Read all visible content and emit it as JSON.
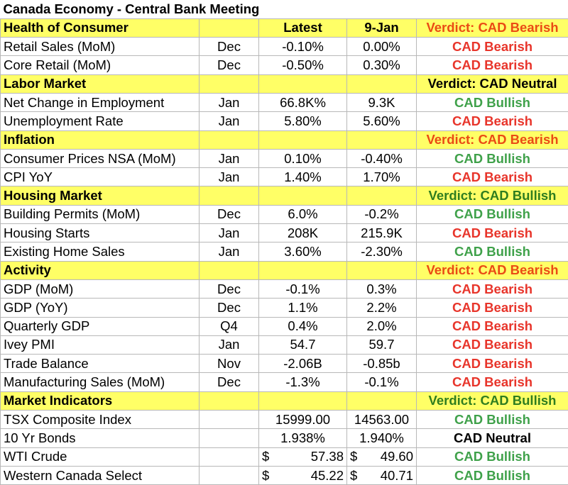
{
  "title": "Canada Economy - Central Bank Meeting",
  "columns": {
    "latest": "Latest",
    "prev": "9-Jan"
  },
  "sections": [
    {
      "name": "Health of Consumer",
      "verdict": "Verdict: CAD Bearish",
      "verdict_color": "orange",
      "rows": [
        {
          "name": "Retail Sales (MoM)",
          "period": "Dec",
          "latest": "-0.10%",
          "prev": "0.00%",
          "signal": "CAD Bearish",
          "color": "red"
        },
        {
          "name": "Core Retail (MoM)",
          "period": "Dec",
          "latest": "-0.50%",
          "prev": "0.30%",
          "signal": "CAD Bearish",
          "color": "red"
        }
      ]
    },
    {
      "name": "Labor Market",
      "verdict": "Verdict: CAD Neutral",
      "verdict_color": "black",
      "rows": [
        {
          "name": "Net Change in Employment",
          "period": "Jan",
          "latest": "66.8K%",
          "prev": "9.3K",
          "signal": "CAD Bullish",
          "color": "green"
        },
        {
          "name": "Unemployment Rate",
          "period": "Jan",
          "latest": "5.80%",
          "prev": "5.60%",
          "signal": "CAD Bearish",
          "color": "red"
        }
      ]
    },
    {
      "name": "Inflation",
      "verdict": "Verdict: CAD Bearish",
      "verdict_color": "orange",
      "rows": [
        {
          "name": "Consumer Prices NSA (MoM)",
          "period": "Jan",
          "latest": "0.10%",
          "prev": "-0.40%",
          "signal": "CAD Bullish",
          "color": "green"
        },
        {
          "name": "CPI YoY",
          "period": "Jan",
          "latest": "1.40%",
          "prev": "1.70%",
          "signal": "CAD Bearish",
          "color": "red"
        }
      ]
    },
    {
      "name": "Housing Market",
      "verdict": "Verdict: CAD Bullish",
      "verdict_color": "dkgreen",
      "rows": [
        {
          "name": "Building Permits (MoM)",
          "period": "Dec",
          "latest": "6.0%",
          "prev": "-0.2%",
          "signal": "CAD Bullish",
          "color": "green"
        },
        {
          "name": "Housing Starts",
          "period": "Jan",
          "latest": "208K",
          "prev": "215.9K",
          "signal": "CAD Bearish",
          "color": "red"
        },
        {
          "name": "Existing Home Sales",
          "period": "Jan",
          "latest": "3.60%",
          "prev": "-2.30%",
          "signal": "CAD Bullish",
          "color": "green"
        }
      ]
    },
    {
      "name": "Activity",
      "verdict": "Verdict: CAD Bearish",
      "verdict_color": "orange",
      "rows": [
        {
          "name": "GDP (MoM)",
          "period": "Dec",
          "latest": "-0.1%",
          "prev": "0.3%",
          "signal": "CAD Bearish",
          "color": "red"
        },
        {
          "name": "GDP (YoY)",
          "period": "Dec",
          "latest": "1.1%",
          "prev": "2.2%",
          "signal": "CAD Bearish",
          "color": "red"
        },
        {
          "name": "Quarterly GDP",
          "period": "Q4",
          "latest": "0.4%",
          "prev": "2.0%",
          "signal": "CAD Bearish",
          "color": "red"
        },
        {
          "name": "Ivey PMI",
          "period": "Jan",
          "latest": "54.7",
          "prev": "59.7",
          "signal": "CAD Bearish",
          "color": "red"
        },
        {
          "name": "Trade Balance",
          "period": "Nov",
          "latest": "-2.06B",
          "prev": "-0.85b",
          "signal": "CAD Bearish",
          "color": "red"
        },
        {
          "name": "Manufacturing Sales (MoM)",
          "period": "Dec",
          "latest": "-1.3%",
          "prev": "-0.1%",
          "signal": "CAD Bearish",
          "color": "red"
        }
      ]
    },
    {
      "name": "Market Indicators",
      "verdict": "Verdict: CAD Bullish",
      "verdict_color": "dkgreen",
      "rows": [
        {
          "name": "TSX Composite Index",
          "period": "",
          "latest": "15999.00",
          "prev": "14563.00",
          "signal": "CAD Bullish",
          "color": "green"
        },
        {
          "name": "10 Yr Bonds",
          "period": "",
          "latest": "1.938%",
          "prev": "1.940%",
          "signal": "CAD Neutral",
          "color": "black"
        },
        {
          "name": "WTI Crude",
          "period": "",
          "latest": "57.38",
          "prev": "49.60",
          "currency": "$",
          "signal": "CAD Bullish",
          "color": "green"
        },
        {
          "name": "Western Canada Select",
          "period": "",
          "latest": "45.22",
          "prev": "40.71",
          "currency": "$",
          "signal": "CAD Bullish",
          "color": "green"
        }
      ]
    }
  ]
}
